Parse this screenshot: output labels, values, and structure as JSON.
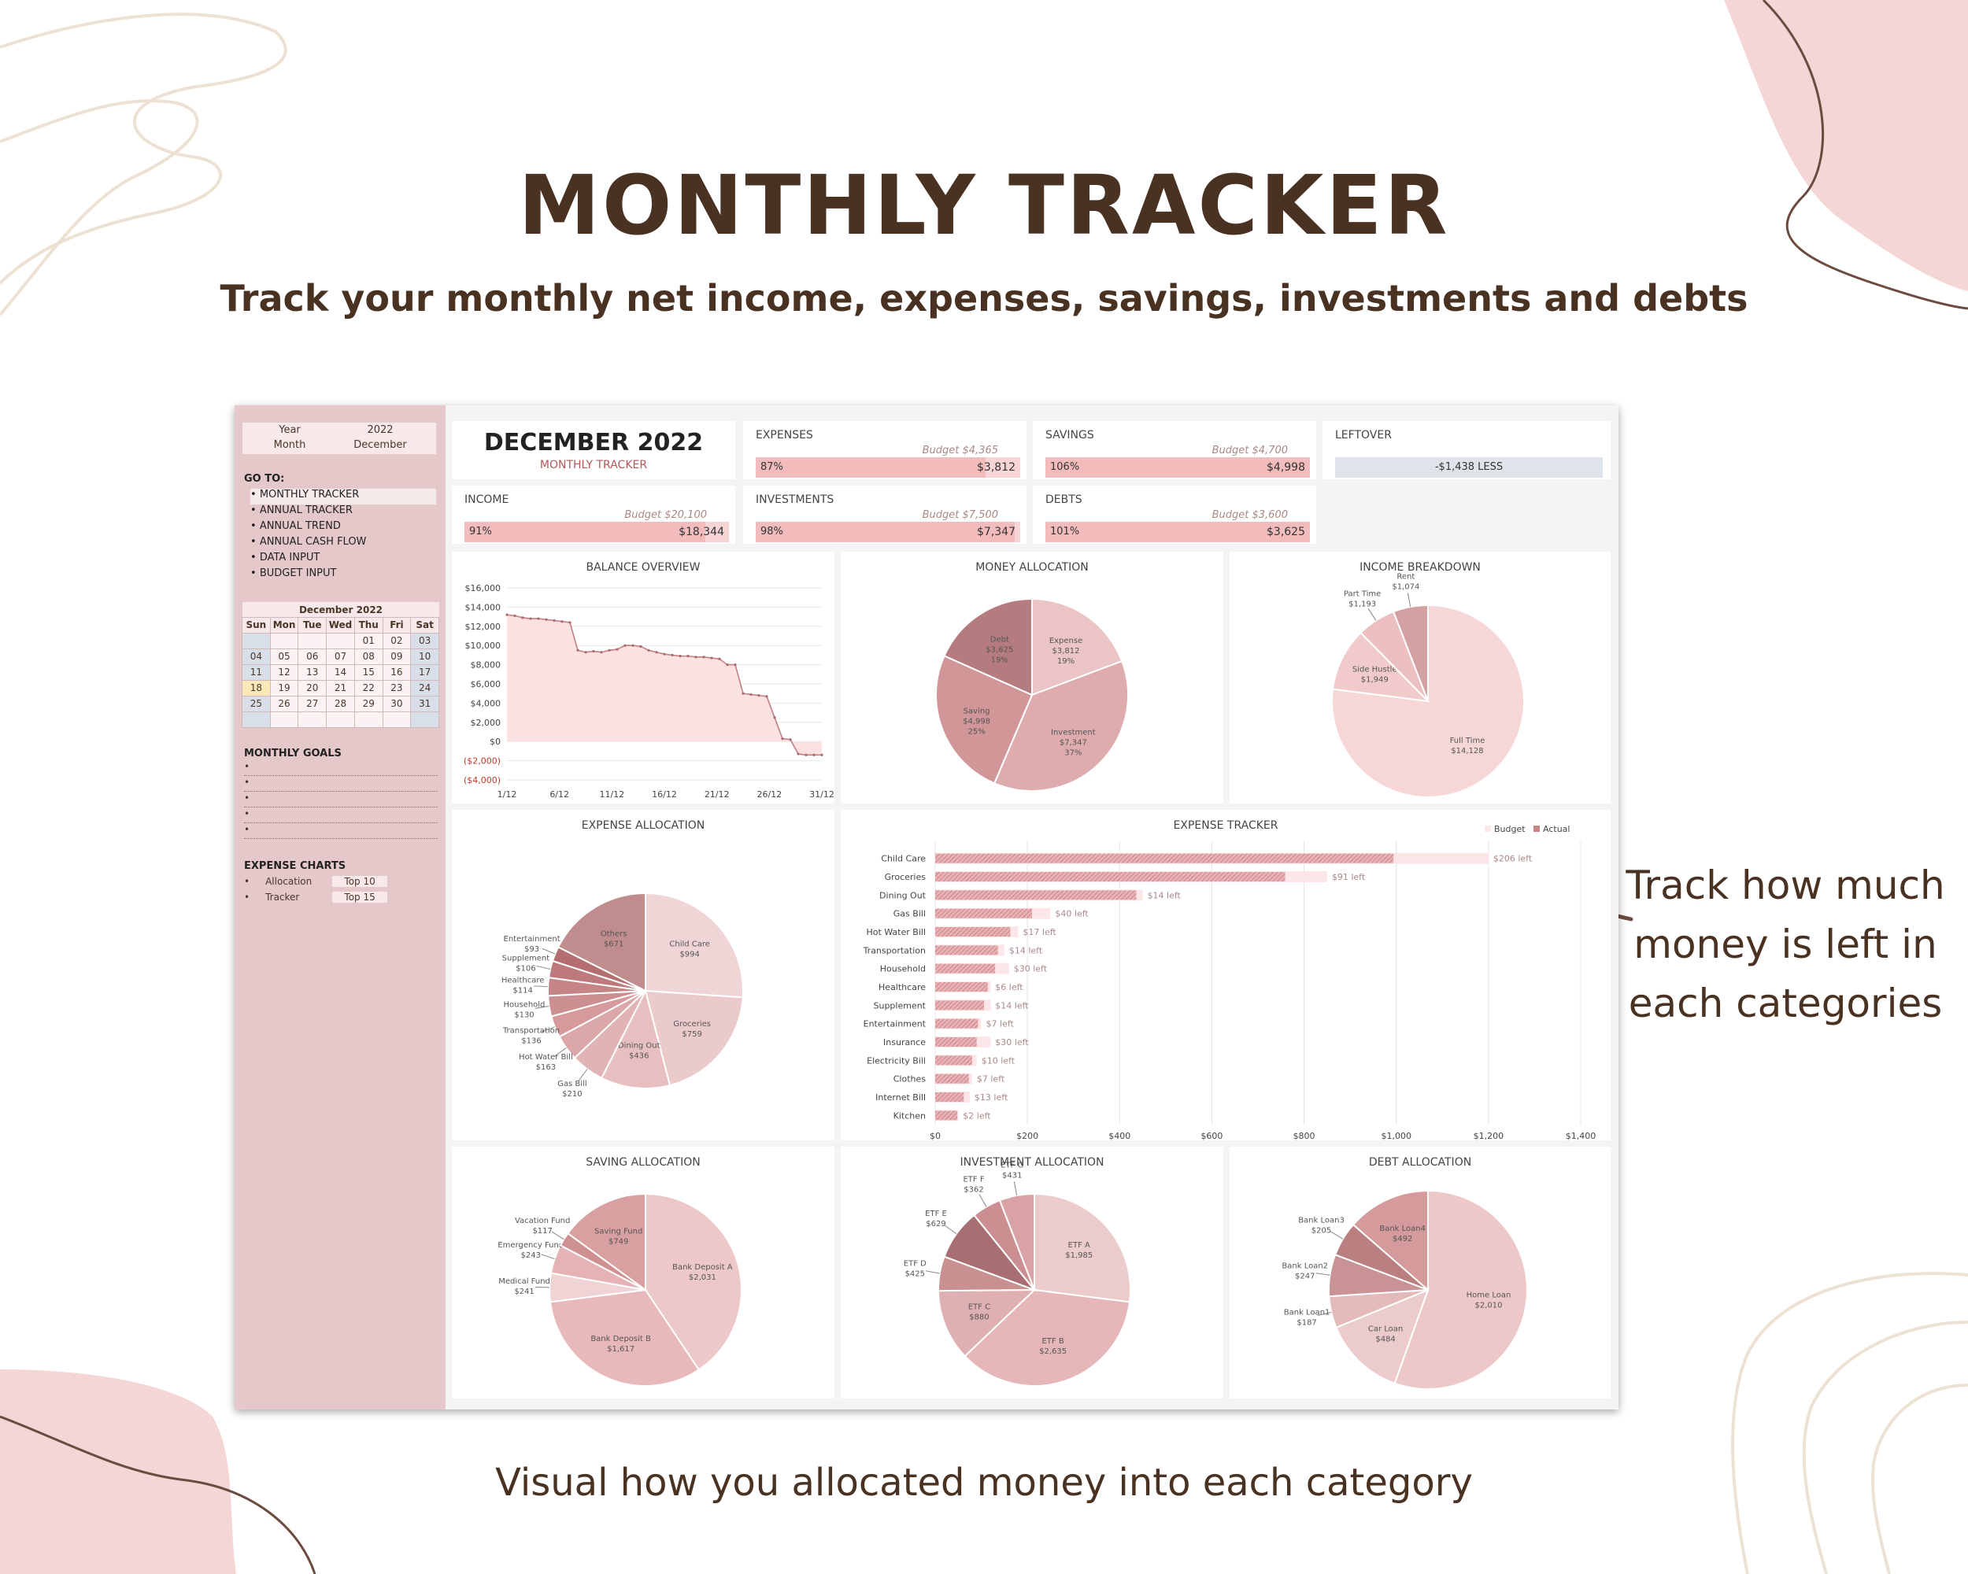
{
  "hero": {
    "title": "MONTHLY TRACKER",
    "subtitle": "Track your monthly net income, expenses, savings, investments and debts",
    "callout": "Track how much money is left in each categories",
    "footer": "Visual how you allocated money into each category"
  },
  "colors": {
    "accent": "#4a3223",
    "sidebar": "#e5c9ca",
    "bar_fill": "#f2bcbd",
    "bar_bg": "#f7d5d6",
    "pie_dark": "#b47c7e",
    "pie_mid": "#dba7a9",
    "pie_light": "#f1d0d1"
  },
  "sidebar": {
    "year_label": "Year",
    "year_value": "2022",
    "month_label": "Month",
    "month_value": "December",
    "goto_label": "GO TO:",
    "nav": [
      "MONTHLY TRACKER",
      "ANNUAL TRACKER",
      "ANNUAL TREND",
      "ANNUAL CASH FLOW",
      "DATA INPUT",
      "BUDGET INPUT"
    ],
    "calendar": {
      "title": "December 2022",
      "weekdays": [
        "Sun",
        "Mon",
        "Tue",
        "Wed",
        "Thu",
        "Fri",
        "Sat"
      ],
      "weeks": [
        [
          "",
          "",
          "",
          "",
          "01",
          "02",
          "03"
        ],
        [
          "04",
          "05",
          "06",
          "07",
          "08",
          "09",
          "10"
        ],
        [
          "11",
          "12",
          "13",
          "14",
          "15",
          "16",
          "17"
        ],
        [
          "18",
          "19",
          "20",
          "21",
          "22",
          "23",
          "24"
        ],
        [
          "25",
          "26",
          "27",
          "28",
          "29",
          "30",
          "31"
        ],
        [
          "",
          "",
          "",
          "",
          "",
          "",
          ""
        ]
      ],
      "today": "18"
    },
    "goals_label": "MONTHLY GOALS",
    "charts_label": "EXPENSE CHARTS",
    "chart_links": [
      {
        "label": "Allocation",
        "tag": "Top 10"
      },
      {
        "label": "Tracker",
        "tag": "Top 15"
      }
    ]
  },
  "header": {
    "title": "DECEMBER 2022",
    "subtitle": "MONTHLY TRACKER"
  },
  "cards": {
    "expenses": {
      "title": "EXPENSES",
      "budget": "Budget $4,365",
      "pct": "87%",
      "value": "$3,812",
      "fill": 0.87
    },
    "savings": {
      "title": "SAVINGS",
      "budget": "Budget $4,700",
      "pct": "106%",
      "value": "$4,998",
      "fill": 1.0
    },
    "leftover": {
      "title": "LEFTOVER",
      "value": "-$1,438 LESS"
    },
    "income": {
      "title": "INCOME",
      "budget": "Budget $20,100",
      "pct": "91%",
      "value": "$18,344",
      "fill": 0.91
    },
    "investments": {
      "title": "INVESTMENTS",
      "budget": "Budget $7,500",
      "pct": "98%",
      "value": "$7,347",
      "fill": 0.98
    },
    "debts": {
      "title": "DEBTS",
      "budget": "Budget $3,600",
      "pct": "101%",
      "value": "$3,625",
      "fill": 1.0
    }
  },
  "chart_data": [
    {
      "id": "balance",
      "type": "area",
      "title": "BALANCE OVERVIEW",
      "x_ticks": [
        "1/12",
        "6/12",
        "11/12",
        "16/12",
        "21/12",
        "26/12",
        "31/12"
      ],
      "y_ticks": [
        "$16,000",
        "$14,000",
        "$12,000",
        "$10,000",
        "$8,000",
        "$6,000",
        "$4,000",
        "$2,000",
        "$0",
        "($2,000)",
        "($4,000)"
      ],
      "ylim": [
        -4000,
        16000
      ],
      "values": [
        13200,
        13100,
        12900,
        12800,
        12800,
        12700,
        12600,
        12500,
        12400,
        9500,
        9300,
        9400,
        9300,
        9500,
        9600,
        10000,
        10000,
        9900,
        9500,
        9300,
        9100,
        9000,
        8900,
        8900,
        8800,
        8800,
        8700,
        8600,
        8000,
        8000,
        5000,
        4900,
        4800,
        4700,
        2500,
        300,
        200,
        -1300,
        -1400,
        -1400,
        -1400
      ]
    },
    {
      "id": "money_alloc",
      "type": "pie",
      "title": "MONEY ALLOCATION",
      "slices": [
        {
          "label": "Expense",
          "value": 3812,
          "text": "$3,812",
          "pct": "19%"
        },
        {
          "label": "Investment",
          "value": 7347,
          "text": "$7,347",
          "pct": "37%"
        },
        {
          "label": "Saving",
          "value": 4998,
          "text": "$4,998",
          "pct": "25%"
        },
        {
          "label": "Debt",
          "value": 3625,
          "text": "$3,625",
          "pct": "19%"
        }
      ]
    },
    {
      "id": "income_breakdown",
      "type": "pie",
      "title": "INCOME BREAKDOWN",
      "slices": [
        {
          "label": "Full Time",
          "value": 14128,
          "text": "$14,128"
        },
        {
          "label": "Side Hustle",
          "value": 1949,
          "text": "$1,949"
        },
        {
          "label": "Part Time",
          "value": 1193,
          "text": "$1,193"
        },
        {
          "label": "Rent",
          "value": 1074,
          "text": "$1,074"
        }
      ]
    },
    {
      "id": "expense_alloc",
      "type": "pie",
      "title": "EXPENSE ALLOCATION",
      "slices": [
        {
          "label": "Child Care",
          "value": 994,
          "text": "$994"
        },
        {
          "label": "Groceries",
          "value": 759,
          "text": "$759"
        },
        {
          "label": "Dining Out",
          "value": 436,
          "text": "$436"
        },
        {
          "label": "Gas Bill",
          "value": 210,
          "text": "$210"
        },
        {
          "label": "Hot Water Bill",
          "value": 163,
          "text": "$163"
        },
        {
          "label": "Transportation",
          "value": 136,
          "text": "$136"
        },
        {
          "label": "Household",
          "value": 130,
          "text": "$130"
        },
        {
          "label": "Healthcare",
          "value": 114,
          "text": "$114"
        },
        {
          "label": "Supplement",
          "value": 106,
          "text": "$106"
        },
        {
          "label": "Entertainment",
          "value": 93,
          "text": "$93"
        },
        {
          "label": "Others",
          "value": 671,
          "text": "$671"
        }
      ]
    },
    {
      "id": "expense_tracker",
      "type": "bar",
      "title": "EXPENSE TRACKER",
      "legend": [
        "Budget",
        "Actual"
      ],
      "x_ticks": [
        "$0",
        "$200",
        "$400",
        "$600",
        "$800",
        "$1,000",
        "$1,200",
        "$1,400"
      ],
      "xlim": [
        0,
        1400
      ],
      "rows": [
        {
          "label": "Child Care",
          "actual": 994,
          "budget": 1200,
          "left": "$206 left"
        },
        {
          "label": "Groceries",
          "actual": 759,
          "budget": 850,
          "left": "$91 left"
        },
        {
          "label": "Dining Out",
          "actual": 436,
          "budget": 450,
          "left": "$14 left"
        },
        {
          "label": "Gas Bill",
          "actual": 210,
          "budget": 250,
          "left": "$40 left"
        },
        {
          "label": "Hot Water Bill",
          "actual": 163,
          "budget": 180,
          "left": "$17 left"
        },
        {
          "label": "Transportation",
          "actual": 136,
          "budget": 150,
          "left": "$14 left"
        },
        {
          "label": "Household",
          "actual": 130,
          "budget": 160,
          "left": "$30 left"
        },
        {
          "label": "Healthcare",
          "actual": 114,
          "budget": 120,
          "left": "$6 left"
        },
        {
          "label": "Supplement",
          "actual": 106,
          "budget": 120,
          "left": "$14 left"
        },
        {
          "label": "Entertainment",
          "actual": 93,
          "budget": 100,
          "left": "$7 left"
        },
        {
          "label": "Insurance",
          "actual": 90,
          "budget": 120,
          "left": "$30 left"
        },
        {
          "label": "Electricity Bill",
          "actual": 80,
          "budget": 90,
          "left": "$10 left"
        },
        {
          "label": "Clothes",
          "actual": 73,
          "budget": 80,
          "left": "$7 left"
        },
        {
          "label": "Internet Bill",
          "actual": 62,
          "budget": 75,
          "left": "$13 left"
        },
        {
          "label": "Kitchen",
          "actual": 48,
          "budget": 50,
          "left": "$2 left"
        }
      ]
    },
    {
      "id": "saving_alloc",
      "type": "pie",
      "title": "SAVING ALLOCATION",
      "slices": [
        {
          "label": "Bank Deposit A",
          "value": 2031,
          "text": "$2,031"
        },
        {
          "label": "Bank Deposit B",
          "value": 1617,
          "text": "$1,617"
        },
        {
          "label": "Medical Fund",
          "value": 241,
          "text": "$241"
        },
        {
          "label": "Emergency Fund",
          "value": 243,
          "text": "$243"
        },
        {
          "label": "Vacation Fund",
          "value": 117,
          "text": "$117"
        },
        {
          "label": "Saving Fund",
          "value": 749,
          "text": "$749"
        }
      ]
    },
    {
      "id": "investment_alloc",
      "type": "pie",
      "title": "INVESTMENT ALLOCATION",
      "slices": [
        {
          "label": "ETF A",
          "value": 1985,
          "text": "$1,985"
        },
        {
          "label": "ETF B",
          "value": 2635,
          "text": "$2,635"
        },
        {
          "label": "ETF C",
          "value": 880,
          "text": "$880"
        },
        {
          "label": "ETF D",
          "value": 425,
          "text": "$425"
        },
        {
          "label": "ETF E",
          "value": 629,
          "text": "$629"
        },
        {
          "label": "ETF F",
          "value": 362,
          "text": "$362"
        },
        {
          "label": "ETF G",
          "value": 431,
          "text": "$431"
        }
      ]
    },
    {
      "id": "debt_alloc",
      "type": "pie",
      "title": "DEBT ALLOCATION",
      "slices": [
        {
          "label": "Home Loan",
          "value": 2010,
          "text": "$2,010"
        },
        {
          "label": "Car Loan",
          "value": 484,
          "text": "$484"
        },
        {
          "label": "Bank Loan1",
          "value": 187,
          "text": "$187"
        },
        {
          "label": "Bank Loan2",
          "value": 247,
          "text": "$247"
        },
        {
          "label": "Bank Loan3",
          "value": 205,
          "text": "$205"
        },
        {
          "label": "Bank Loan4",
          "value": 492,
          "text": "$492"
        }
      ]
    }
  ]
}
